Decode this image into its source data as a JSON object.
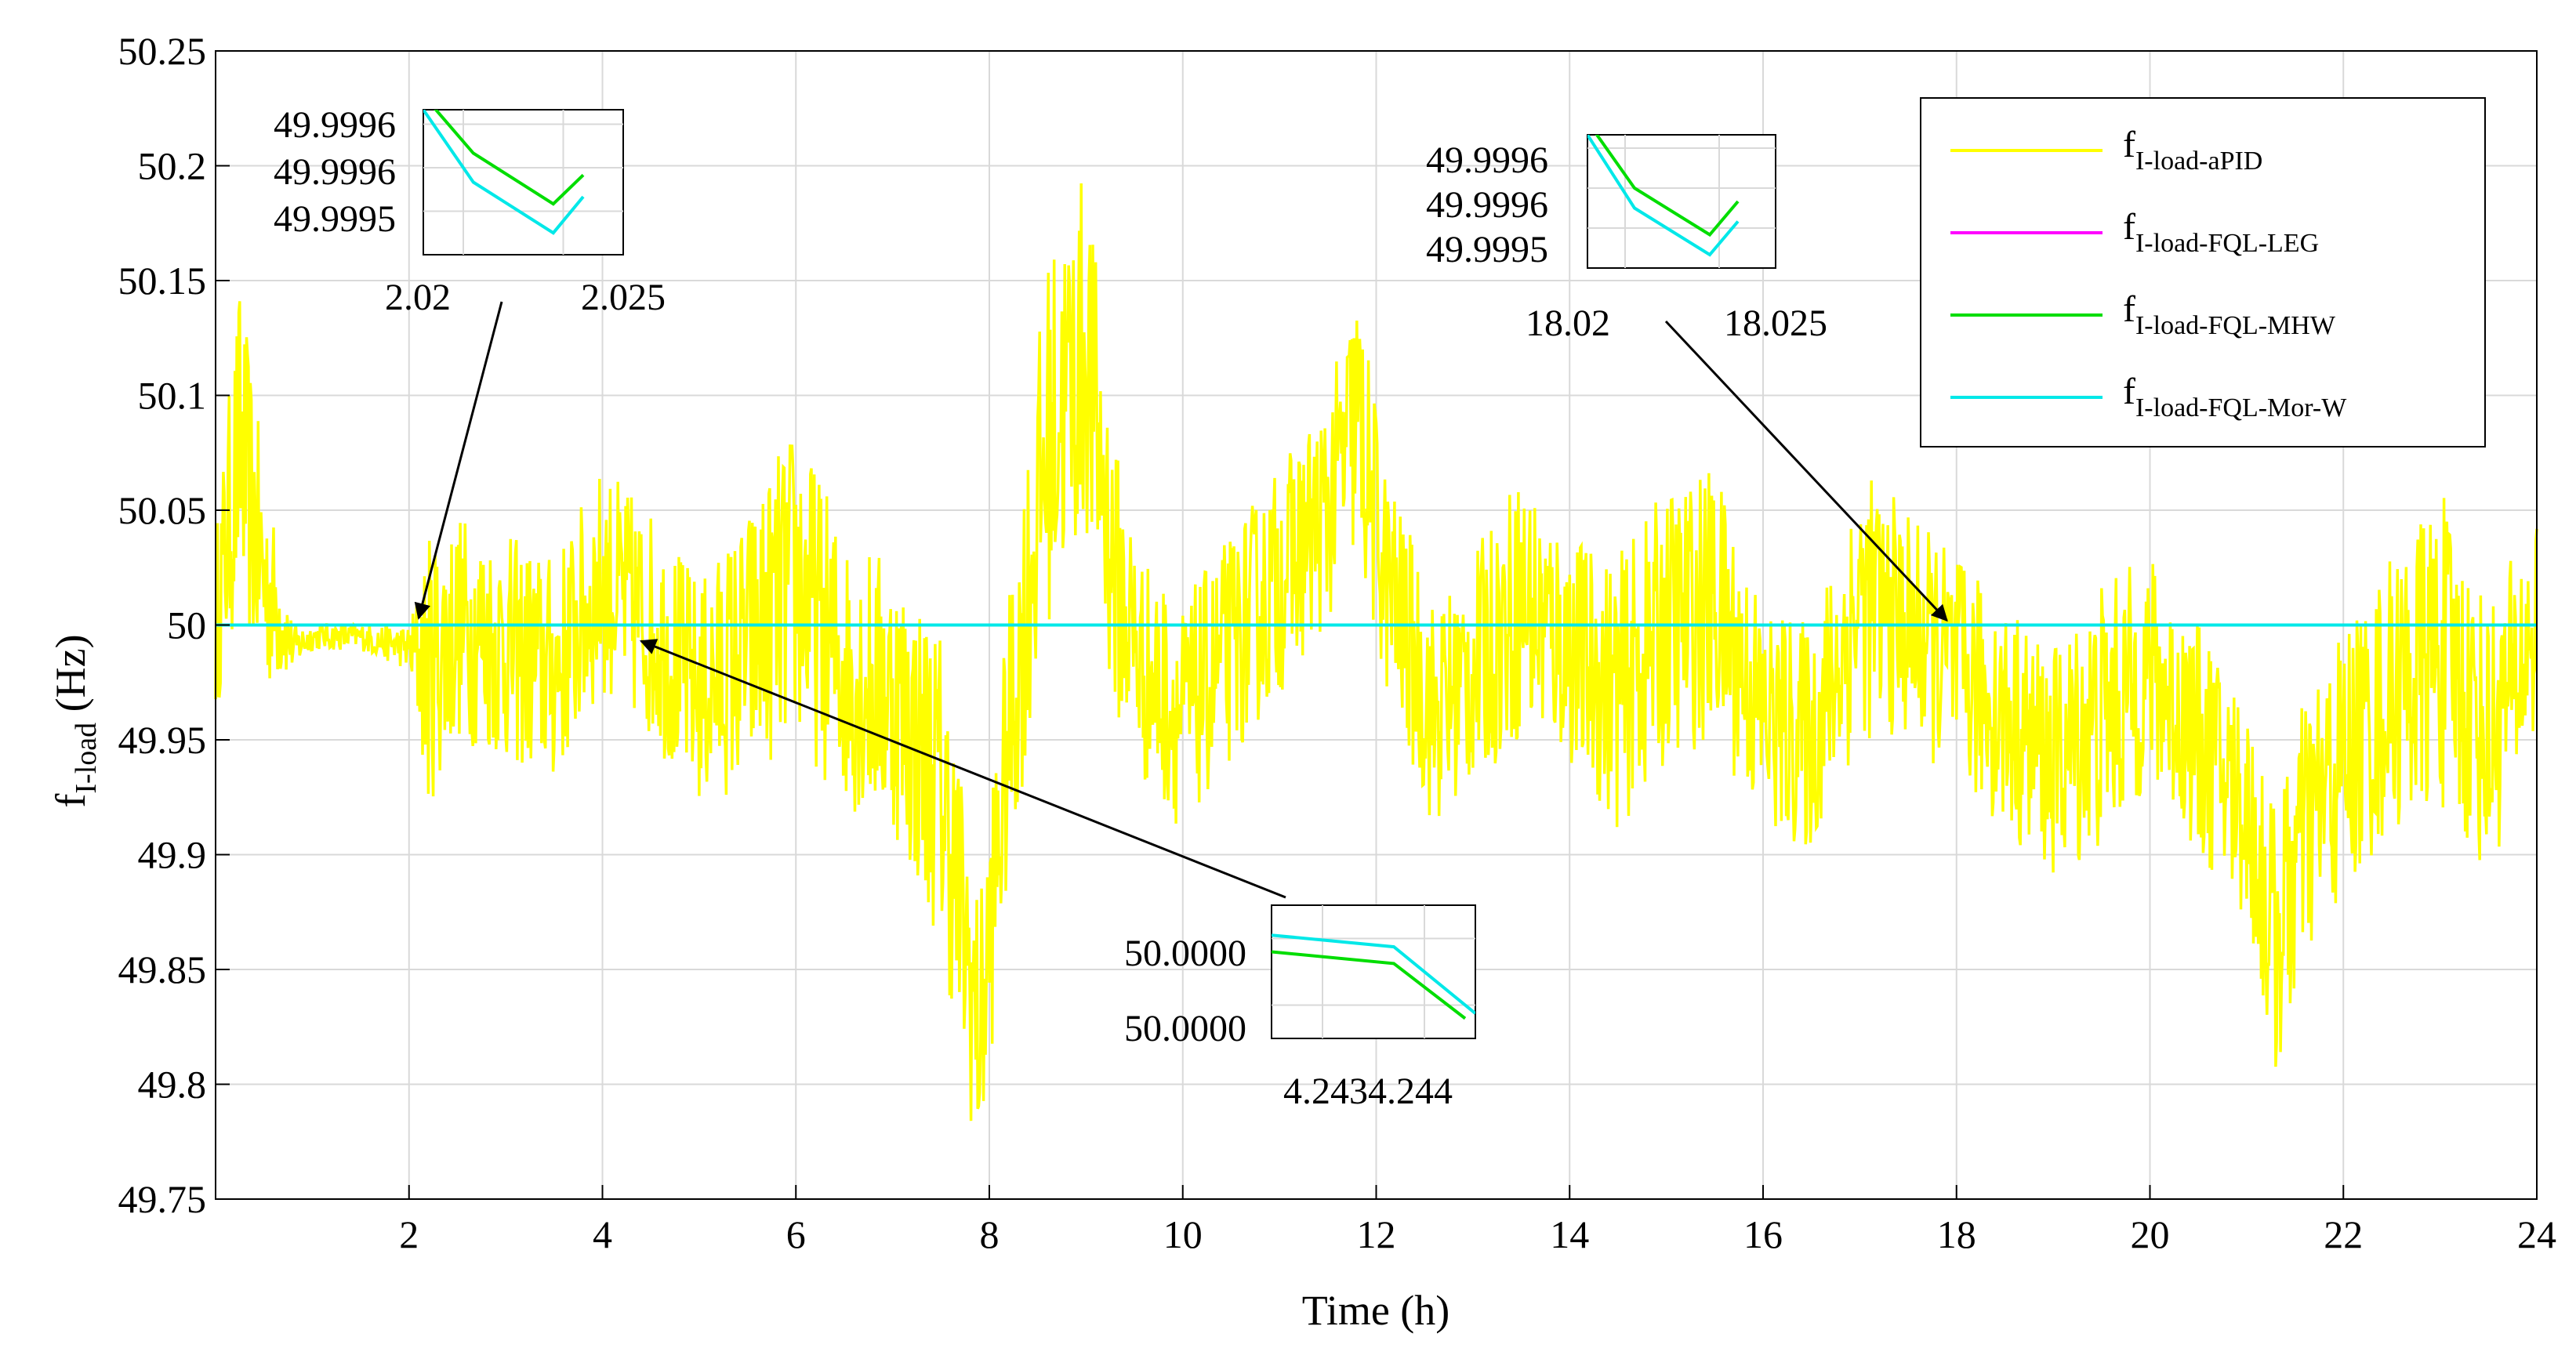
{
  "chart_data": {
    "type": "line",
    "title": "",
    "xlabel": "Time (h)",
    "ylabel": {
      "main": "f",
      "sub": "I-load",
      "unit": " (Hz)"
    },
    "xlim": [
      0,
      24
    ],
    "ylim": [
      49.75,
      50.25
    ],
    "grid": true,
    "xticks": [
      "2",
      "4",
      "6",
      "8",
      "10",
      "12",
      "14",
      "16",
      "18",
      "20",
      "22",
      "24"
    ],
    "yticks": [
      "49.75",
      "49.8",
      "49.85",
      "49.9",
      "49.95",
      "50",
      "50.05",
      "50.1",
      "50.15",
      "50.2",
      "50.25"
    ],
    "legend_position": "top-right",
    "series": [
      {
        "name": "f_I-load-aPID",
        "label_main": "f",
        "label_sub": "I-load-aPID",
        "color": "#ffff00",
        "envelope": {
          "x": [
            0,
            0.25,
            0.5,
            0.8,
            1.0,
            1.5,
            2.0,
            2.2,
            2.5,
            3.0,
            3.5,
            4.0,
            4.5,
            5.0,
            5.5,
            6.0,
            6.5,
            7.0,
            7.5,
            7.9,
            8.2,
            8.6,
            9.0,
            9.3,
            9.6,
            10.0,
            10.5,
            11.0,
            11.5,
            11.8,
            12.1,
            12.6,
            13.0,
            13.5,
            14.0,
            14.5,
            15.0,
            15.5,
            16.0,
            16.5,
            17.0,
            17.5,
            18.0,
            18.5,
            19.0,
            19.5,
            20.0,
            20.5,
            21.0,
            21.3,
            21.6,
            22.0,
            22.5,
            23.0,
            23.5,
            24.0
          ],
          "center": [
            50.0,
            50.08,
            50.02,
            49.99,
            49.995,
            49.995,
            49.99,
            49.98,
            50.0,
            49.99,
            49.98,
            50.02,
            50.0,
            49.97,
            49.99,
            50.02,
            49.98,
            49.97,
            49.93,
            49.82,
            49.95,
            50.08,
            50.12,
            50.02,
            49.98,
            49.96,
            49.99,
            50.02,
            50.05,
            50.09,
            50.02,
            49.96,
            49.98,
            50.01,
            49.99,
            49.97,
            50.0,
            50.01,
            49.96,
            49.95,
            50.01,
            50.0,
            49.98,
            49.96,
            49.94,
            49.96,
            49.98,
            49.95,
            49.92,
            49.86,
            49.91,
            49.94,
            49.97,
            49.99,
            49.95,
            50.0
          ],
          "amplitude": [
            0.04,
            0.07,
            0.05,
            0.01,
            0.006,
            0.006,
            0.01,
            0.06,
            0.05,
            0.05,
            0.05,
            0.05,
            0.05,
            0.05,
            0.06,
            0.07,
            0.06,
            0.06,
            0.07,
            0.06,
            0.06,
            0.08,
            0.08,
            0.06,
            0.05,
            0.05,
            0.05,
            0.05,
            0.05,
            0.06,
            0.05,
            0.05,
            0.05,
            0.06,
            0.05,
            0.06,
            0.06,
            0.06,
            0.05,
            0.05,
            0.06,
            0.05,
            0.05,
            0.05,
            0.05,
            0.06,
            0.05,
            0.05,
            0.05,
            0.06,
            0.06,
            0.06,
            0.06,
            0.07,
            0.06,
            0.05
          ]
        }
      },
      {
        "name": "f_I-load-FQL-LEG",
        "label_main": "f",
        "label_sub": "I-load-FQL-LEG",
        "color": "#ff00ff",
        "x": [
          0,
          24
        ],
        "values": [
          50,
          50
        ]
      },
      {
        "name": "f_I-load-FQL-MHW",
        "label_main": "f",
        "label_sub": "I-load-FQL-MHW",
        "color": "#00dd00",
        "x": [
          0,
          24
        ],
        "values": [
          50,
          50
        ]
      },
      {
        "name": "f_I-load-FQL-Mor-W",
        "label_main": "f",
        "label_sub": "I-load-FQL-Mor-W",
        "color": "#00e8e8",
        "x": [
          0,
          24
        ],
        "values": [
          50,
          50
        ]
      }
    ],
    "insets": [
      {
        "name": "inset-2h",
        "xlim": [
          2.018,
          2.028
        ],
        "ylim": [
          49.99944,
          49.99964
        ],
        "xticks": [
          "2.02",
          "2.025"
        ],
        "xtick_values": [
          2.02,
          2.025
        ],
        "yticks": [
          "49.9996",
          "49.9996",
          "49.9995"
        ],
        "ytick_values": [
          49.99962,
          49.99956,
          49.9995
        ],
        "series": [
          {
            "color": "#00dd00",
            "x": [
              2.018,
              2.0205,
              2.0245,
              2.026
            ],
            "values": [
              49.99966,
              49.99958,
              49.99951,
              49.99955
            ]
          },
          {
            "color": "#00e8e8",
            "x": [
              2.018,
              2.0205,
              2.0245,
              2.026
            ],
            "values": [
              49.99964,
              49.99954,
              49.99947,
              49.99952
            ]
          }
        ],
        "arrow_to": {
          "x": 2.1,
          "y": 50.003
        }
      },
      {
        "name": "inset-18h",
        "xlim": [
          18.018,
          18.028
        ],
        "ylim": [
          49.99944,
          49.99964
        ],
        "xticks": [
          "18.02",
          "18.025"
        ],
        "xtick_values": [
          18.02,
          18.025
        ],
        "yticks": [
          "49.9996",
          "49.9996",
          "49.9995"
        ],
        "ytick_values": [
          49.99962,
          49.99956,
          49.9995
        ],
        "series": [
          {
            "color": "#00dd00",
            "x": [
              18.018,
              18.0205,
              18.0245,
              18.026
            ],
            "values": [
              49.99966,
              49.99956,
              49.99949,
              49.99954
            ]
          },
          {
            "color": "#00e8e8",
            "x": [
              18.018,
              18.0205,
              18.0245,
              18.026
            ],
            "values": [
              49.99964,
              49.99953,
              49.99946,
              49.99951
            ]
          }
        ],
        "arrow_to": {
          "x": 17.9,
          "y": 50.002
        }
      },
      {
        "name": "inset-4h",
        "xlim": [
          4.2425,
          4.2445
        ],
        "ylim": [
          49.99996,
          50.00004
        ],
        "xticks": [
          "4.243",
          "4.244"
        ],
        "xtick_values": [
          4.243,
          4.244
        ],
        "yticks": [
          "50.0000",
          "50.0000"
        ],
        "ytick_values": [
          50.00002,
          49.99998
        ],
        "series": [
          {
            "color": "#00e8e8",
            "x": [
              4.2425,
              4.2437,
              4.2445
            ],
            "values": [
              50.000022,
              50.000015,
              49.999975
            ]
          },
          {
            "color": "#00dd00",
            "x": [
              4.2425,
              4.2437,
              4.2444
            ],
            "values": [
              50.000012,
              50.000005,
              49.999972
            ]
          }
        ],
        "arrow_to": {
          "x": 4.4,
          "y": 49.993
        }
      }
    ]
  }
}
